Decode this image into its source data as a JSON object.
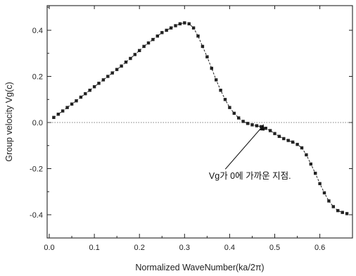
{
  "chart_data": {
    "type": "scatter",
    "title": "",
    "xlabel": "Normalized WaveNumber(ka/2π)",
    "ylabel": "Group velocity Vg(c)",
    "xlim": [
      0.0,
      0.66
    ],
    "ylim": [
      -0.48,
      0.5
    ],
    "xticks": [
      0.0,
      0.1,
      0.2,
      0.3,
      0.4,
      0.5,
      0.6
    ],
    "xtick_labels": [
      "0.0",
      "0.1",
      "0.2",
      "0.3",
      "0.4",
      "0.5",
      "0.6"
    ],
    "yticks": [
      -0.4,
      -0.2,
      0.0,
      0.2,
      0.4
    ],
    "ytick_labels": [
      "-0.4",
      "-0.2",
      "0.0",
      "0.2",
      "0.4"
    ],
    "grid": false,
    "reference_line_y": 0.0,
    "series": [
      {
        "marker": "square",
        "connected": true,
        "color": "#222222",
        "x": [
          0.01,
          0.02,
          0.03,
          0.04,
          0.05,
          0.06,
          0.07,
          0.08,
          0.09,
          0.1,
          0.11,
          0.12,
          0.13,
          0.14,
          0.15,
          0.16,
          0.17,
          0.18,
          0.19,
          0.2,
          0.21,
          0.22,
          0.23,
          0.24,
          0.25,
          0.26,
          0.27,
          0.28,
          0.29,
          0.3,
          0.31,
          0.32,
          0.33,
          0.34,
          0.35,
          0.36,
          0.37,
          0.38,
          0.39,
          0.4,
          0.41,
          0.42,
          0.43,
          0.44,
          0.45,
          0.46,
          0.47,
          0.48,
          0.49,
          0.5,
          0.51,
          0.52,
          0.53,
          0.54,
          0.55,
          0.56,
          0.57,
          0.58,
          0.59,
          0.6,
          0.61,
          0.62,
          0.63,
          0.64,
          0.65,
          0.66
        ],
        "y": [
          0.022,
          0.036,
          0.05,
          0.065,
          0.08,
          0.094,
          0.11,
          0.125,
          0.14,
          0.155,
          0.17,
          0.185,
          0.2,
          0.215,
          0.23,
          0.245,
          0.262,
          0.278,
          0.295,
          0.312,
          0.33,
          0.345,
          0.36,
          0.375,
          0.39,
          0.4,
          0.41,
          0.42,
          0.428,
          0.432,
          0.428,
          0.41,
          0.375,
          0.33,
          0.285,
          0.235,
          0.185,
          0.14,
          0.1,
          0.065,
          0.04,
          0.02,
          0.005,
          -0.004,
          -0.01,
          -0.014,
          -0.018,
          -0.025,
          -0.035,
          -0.048,
          -0.06,
          -0.07,
          -0.078,
          -0.085,
          -0.095,
          -0.11,
          -0.14,
          -0.18,
          -0.22,
          -0.265,
          -0.305,
          -0.34,
          -0.365,
          -0.382,
          -0.39,
          -0.395
        ]
      }
    ],
    "annotation": {
      "text": "Vg가 0에 가까운 지점.",
      "point": [
        0.475,
        0.0
      ],
      "text_at": [
        0.445,
        -0.245
      ]
    }
  }
}
